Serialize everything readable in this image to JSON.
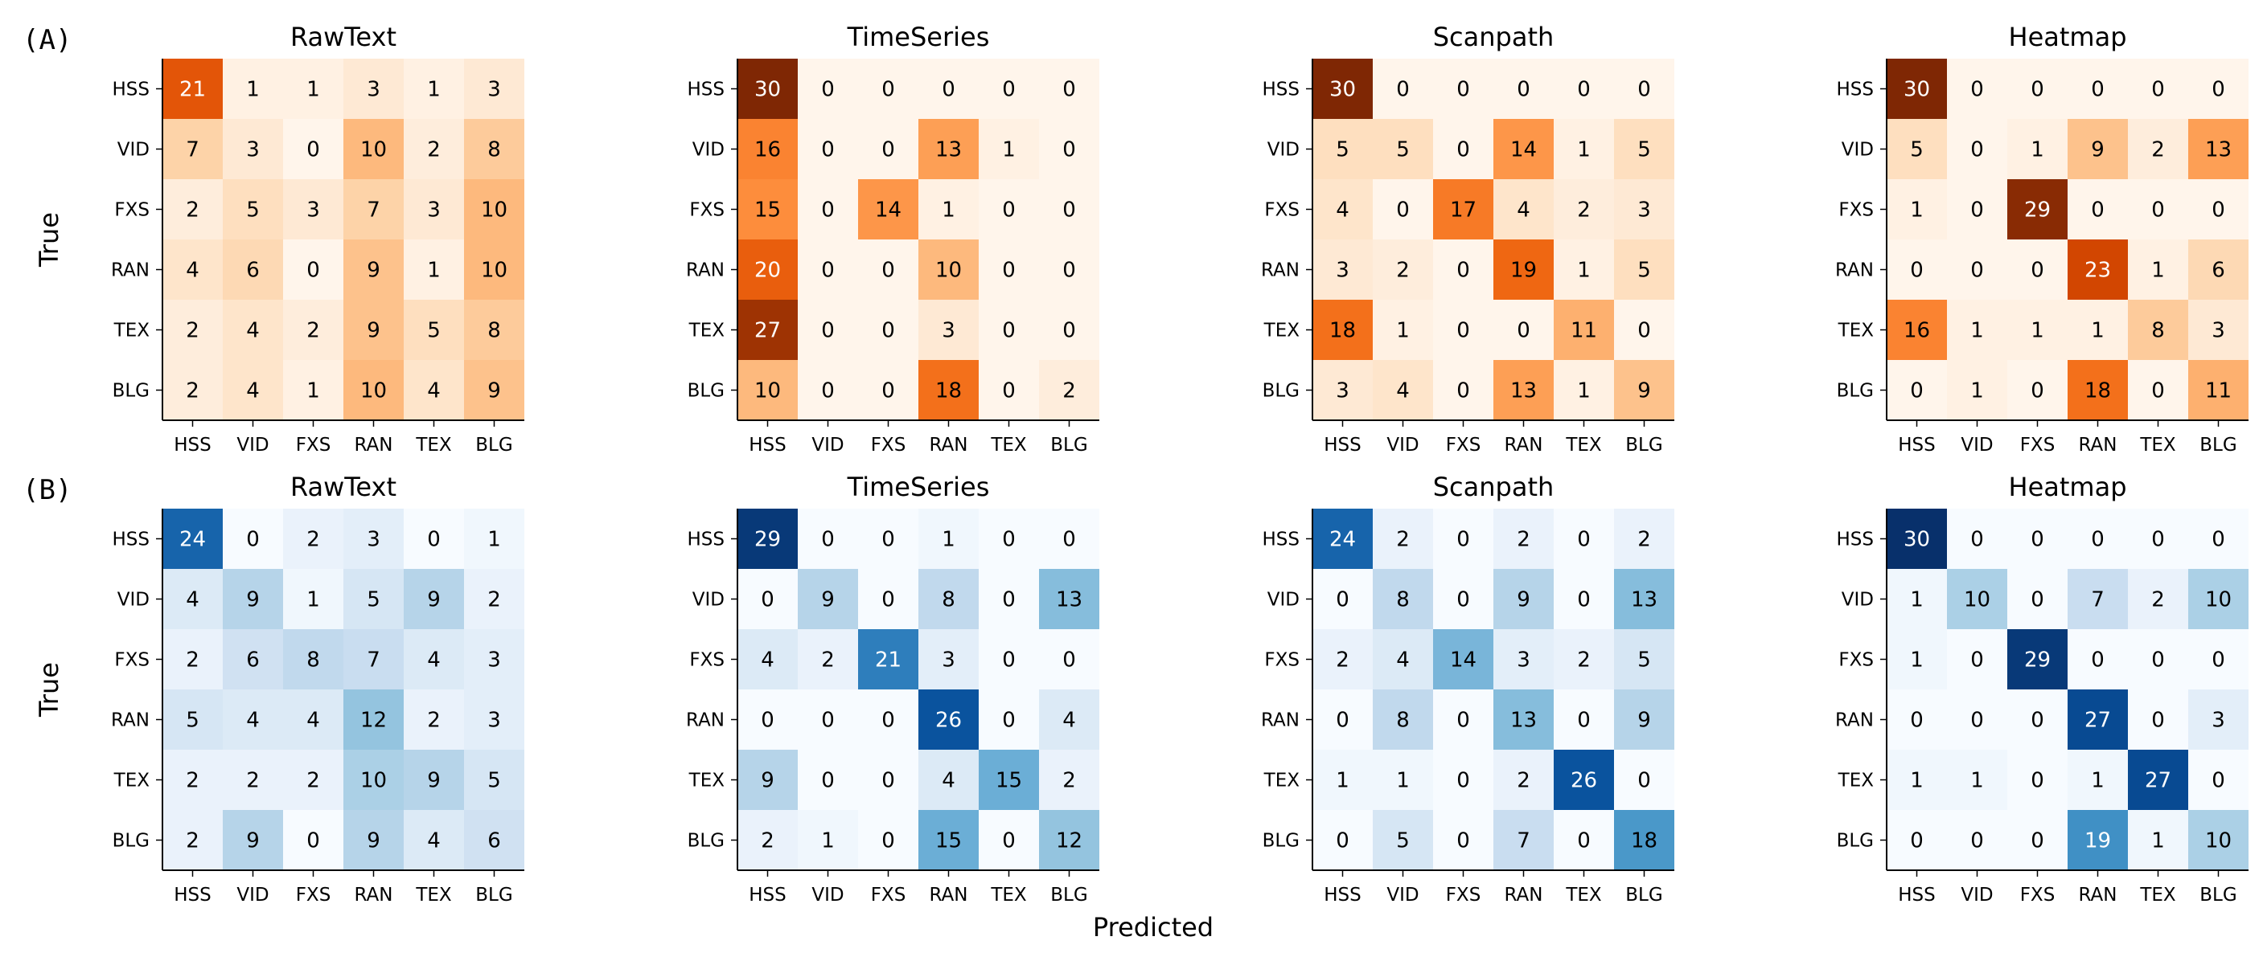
{
  "figure": {
    "xlabel": "Predicted",
    "ylabel": "True"
  },
  "chart_data": [
    {
      "row_label": "(A)",
      "colormap": "oranges",
      "type": "heatmap",
      "panels": [
        {
          "title": "RawText",
          "vmax": 30,
          "categories": [
            "HSS",
            "VID",
            "FXS",
            "RAN",
            "TEX",
            "BLG"
          ],
          "matrix": [
            [
              21,
              1,
              1,
              3,
              1,
              3
            ],
            [
              7,
              3,
              0,
              10,
              2,
              8
            ],
            [
              2,
              5,
              3,
              7,
              3,
              10
            ],
            [
              4,
              6,
              0,
              9,
              1,
              10
            ],
            [
              2,
              4,
              2,
              9,
              5,
              8
            ],
            [
              2,
              4,
              1,
              10,
              4,
              9
            ]
          ]
        },
        {
          "title": "TimeSeries",
          "vmax": 30,
          "categories": [
            "HSS",
            "VID",
            "FXS",
            "RAN",
            "TEX",
            "BLG"
          ],
          "matrix": [
            [
              30,
              0,
              0,
              0,
              0,
              0
            ],
            [
              16,
              0,
              0,
              13,
              1,
              0
            ],
            [
              15,
              0,
              14,
              1,
              0,
              0
            ],
            [
              20,
              0,
              0,
              10,
              0,
              0
            ],
            [
              27,
              0,
              0,
              3,
              0,
              0
            ],
            [
              10,
              0,
              0,
              18,
              0,
              2
            ]
          ]
        },
        {
          "title": "Scanpath",
          "vmax": 30,
          "categories": [
            "HSS",
            "VID",
            "FXS",
            "RAN",
            "TEX",
            "BLG"
          ],
          "matrix": [
            [
              30,
              0,
              0,
              0,
              0,
              0
            ],
            [
              5,
              5,
              0,
              14,
              1,
              5
            ],
            [
              4,
              0,
              17,
              4,
              2,
              3
            ],
            [
              3,
              2,
              0,
              19,
              1,
              5
            ],
            [
              18,
              1,
              0,
              0,
              11,
              0
            ],
            [
              3,
              4,
              0,
              13,
              1,
              9
            ]
          ]
        },
        {
          "title": "Heatmap",
          "vmax": 30,
          "categories": [
            "HSS",
            "VID",
            "FXS",
            "RAN",
            "TEX",
            "BLG"
          ],
          "matrix": [
            [
              30,
              0,
              0,
              0,
              0,
              0
            ],
            [
              5,
              0,
              1,
              9,
              2,
              13
            ],
            [
              1,
              0,
              29,
              0,
              0,
              0
            ],
            [
              0,
              0,
              0,
              23,
              1,
              6
            ],
            [
              16,
              1,
              1,
              1,
              8,
              3
            ],
            [
              0,
              1,
              0,
              18,
              0,
              11
            ]
          ]
        }
      ]
    },
    {
      "row_label": "(B)",
      "colormap": "blues",
      "type": "heatmap",
      "panels": [
        {
          "title": "RawText",
          "vmax": 30,
          "categories": [
            "HSS",
            "VID",
            "FXS",
            "RAN",
            "TEX",
            "BLG"
          ],
          "matrix": [
            [
              24,
              0,
              2,
              3,
              0,
              1
            ],
            [
              4,
              9,
              1,
              5,
              9,
              2
            ],
            [
              2,
              6,
              8,
              7,
              4,
              3
            ],
            [
              5,
              4,
              4,
              12,
              2,
              3
            ],
            [
              2,
              2,
              2,
              10,
              9,
              5
            ],
            [
              2,
              9,
              0,
              9,
              4,
              6
            ]
          ]
        },
        {
          "title": "TimeSeries",
          "vmax": 30,
          "categories": [
            "HSS",
            "VID",
            "FXS",
            "RAN",
            "TEX",
            "BLG"
          ],
          "matrix": [
            [
              29,
              0,
              0,
              1,
              0,
              0
            ],
            [
              0,
              9,
              0,
              8,
              0,
              13
            ],
            [
              4,
              2,
              21,
              3,
              0,
              0
            ],
            [
              0,
              0,
              0,
              26,
              0,
              4
            ],
            [
              9,
              0,
              0,
              4,
              15,
              2
            ],
            [
              2,
              1,
              0,
              15,
              0,
              12
            ]
          ]
        },
        {
          "title": "Scanpath",
          "vmax": 30,
          "categories": [
            "HSS",
            "VID",
            "FXS",
            "RAN",
            "TEX",
            "BLG"
          ],
          "matrix": [
            [
              24,
              2,
              0,
              2,
              0,
              2
            ],
            [
              0,
              8,
              0,
              9,
              0,
              13
            ],
            [
              2,
              4,
              14,
              3,
              2,
              5
            ],
            [
              0,
              8,
              0,
              13,
              0,
              9
            ],
            [
              1,
              1,
              0,
              2,
              26,
              0
            ],
            [
              0,
              5,
              0,
              7,
              0,
              18
            ]
          ]
        },
        {
          "title": "Heatmap",
          "vmax": 30,
          "categories": [
            "HSS",
            "VID",
            "FXS",
            "RAN",
            "TEX",
            "BLG"
          ],
          "matrix": [
            [
              30,
              0,
              0,
              0,
              0,
              0
            ],
            [
              1,
              10,
              0,
              7,
              2,
              10
            ],
            [
              1,
              0,
              29,
              0,
              0,
              0
            ],
            [
              0,
              0,
              0,
              27,
              0,
              3
            ],
            [
              1,
              1,
              0,
              1,
              27,
              0
            ],
            [
              0,
              0,
              0,
              19,
              1,
              10
            ]
          ]
        }
      ]
    }
  ]
}
